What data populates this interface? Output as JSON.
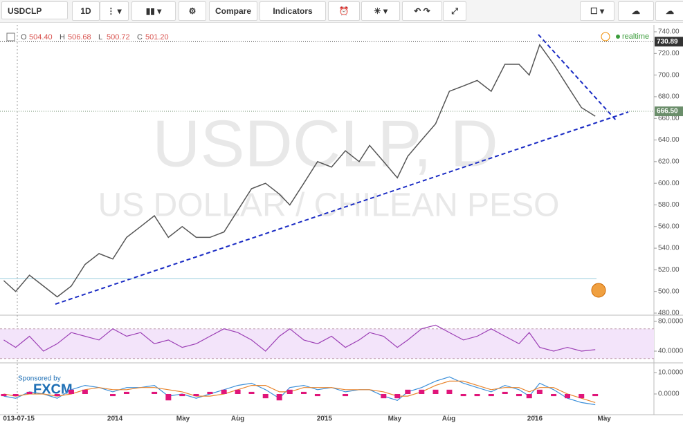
{
  "toolbar": {
    "symbol": "USDCLP",
    "interval": "1D",
    "compare": "Compare",
    "indicators": "Indicators"
  },
  "header": {
    "o_label": "O",
    "o": "504.40",
    "h_label": "H",
    "h": "506.68",
    "l_label": "L",
    "l": "500.72",
    "c_label": "C",
    "c": "501.20",
    "realtime": "realtime"
  },
  "watermark": {
    "symbol": "USDCLP, D",
    "name": "US DOLLAR / CHILEAN PESO"
  },
  "sponsor": {
    "text": "Sponsored by",
    "brand": "FXCM"
  },
  "chart_data": [
    {
      "type": "line",
      "name": "price",
      "color": "#555555",
      "x": [
        2013.468,
        2013.525,
        2013.591,
        2013.658,
        2013.724,
        2013.791,
        2013.857,
        2013.924,
        2013.99,
        2014.056,
        2014.123,
        2014.189,
        2014.256,
        2014.322,
        2014.389,
        2014.455,
        2014.522,
        2014.588,
        2014.654,
        2014.721,
        2014.787,
        2014.837,
        2014.904,
        2014.97,
        2015.037,
        2015.103,
        2015.169,
        2015.219,
        2015.286,
        2015.352,
        2015.402,
        2015.468,
        2015.535,
        2015.601,
        2015.668,
        2015.734,
        2015.801,
        2015.867,
        2015.934,
        2015.983,
        2016.033,
        2016.1,
        2016.166,
        2016.233,
        2016.299
      ],
      "values": [
        510,
        500,
        515,
        505,
        495,
        505,
        525,
        535,
        530,
        550,
        560,
        570,
        550,
        560,
        550,
        550,
        555,
        575,
        595,
        600,
        590,
        580,
        600,
        620,
        615,
        630,
        620,
        635,
        620,
        605,
        625,
        640,
        655,
        685,
        690,
        695,
        685,
        710,
        710,
        700,
        728,
        710,
        690,
        670,
        662
      ],
      "xlim": [
        2013.45,
        2016.58
      ],
      "xticks": [
        {
          "value": 2013.54,
          "label": "013-07-15"
        },
        {
          "value": 2014,
          "label": "2014"
        },
        {
          "value": 2014.326,
          "label": "May"
        },
        {
          "value": 2014.588,
          "label": "Aug"
        },
        {
          "value": 2015.003,
          "label": "2015"
        },
        {
          "value": 2015.339,
          "label": "May"
        },
        {
          "value": 2015.598,
          "label": "Aug"
        },
        {
          "value": 2016.01,
          "label": "2016"
        },
        {
          "value": 2016.342,
          "label": "May"
        }
      ],
      "ylim": [
        480,
        740
      ],
      "yticks": [
        {
          "value": 480,
          "label": "480.00"
        },
        {
          "value": 500,
          "label": "500.00"
        },
        {
          "value": 520,
          "label": "520.00"
        },
        {
          "value": 540,
          "label": "540.00"
        },
        {
          "value": 560,
          "label": "560.00"
        },
        {
          "value": 580,
          "label": "580.00"
        },
        {
          "value": 600,
          "label": "600.00"
        },
        {
          "value": 620,
          "label": "620.00"
        },
        {
          "value": 640,
          "label": "640.00"
        },
        {
          "value": 660,
          "label": "660.00"
        },
        {
          "value": 680,
          "label": "680.00"
        },
        {
          "value": 700,
          "label": "700.00"
        },
        {
          "value": 720,
          "label": "720.00"
        },
        {
          "value": 740,
          "label": "740.00"
        }
      ],
      "price_labels": [
        {
          "value": 730.89,
          "label": "730.89",
          "color": "#333333"
        },
        {
          "value": 666.5,
          "label": "666.50",
          "color": "#6b8e6b"
        }
      ]
    },
    {
      "type": "line",
      "name": "rsi",
      "color": "#9c3fb5",
      "values": [
        55,
        45,
        60,
        40,
        50,
        65,
        60,
        55,
        70,
        60,
        65,
        50,
        55,
        45,
        50,
        60,
        70,
        65,
        55,
        40,
        60,
        70,
        55,
        50,
        60,
        45,
        55,
        65,
        60,
        45,
        55,
        70,
        75,
        65,
        55,
        60,
        70,
        60,
        50,
        65,
        45,
        40,
        45,
        40,
        42
      ],
      "ylim": [
        27,
        86.5
      ],
      "band": [
        30,
        70
      ],
      "yticks": [
        {
          "value": 40,
          "label": "40.0000"
        },
        {
          "value": 80,
          "label": "80.0000"
        }
      ]
    },
    {
      "type": "macd",
      "name": "macd",
      "series": [
        {
          "name": "MACD",
          "color": "#3b8fd9",
          "values": [
            -1,
            -2,
            1,
            0,
            -2,
            2,
            4,
            3,
            1,
            3,
            3,
            4,
            -1,
            0,
            -2,
            0,
            2,
            4,
            5,
            2,
            -2,
            3,
            4,
            2,
            3,
            1,
            2,
            2,
            -1,
            -3,
            1,
            3,
            6,
            8,
            5,
            3,
            1,
            4,
            2,
            -1,
            5,
            2,
            -2,
            -4,
            -5
          ]
        },
        {
          "name": "Signal",
          "color": "#e8842c",
          "values": [
            0,
            -1,
            0,
            0,
            -1,
            0,
            2,
            3,
            2,
            2,
            3,
            3,
            2,
            1,
            -1,
            -1,
            0,
            2,
            4,
            4,
            1,
            1,
            3,
            3,
            3,
            2,
            2,
            2,
            1,
            -1,
            -1,
            1,
            4,
            6,
            6,
            4,
            2,
            3,
            3,
            1,
            3,
            3,
            0,
            -2,
            -4
          ]
        },
        {
          "name": "Histogram",
          "color": "#e0157a",
          "values": [
            -1,
            -1,
            1,
            0,
            -1,
            2,
            2,
            0,
            -1,
            1,
            0,
            1,
            -3,
            -1,
            -1,
            1,
            2,
            2,
            1,
            -2,
            -3,
            2,
            1,
            -1,
            0,
            -1,
            0,
            0,
            -2,
            -2,
            2,
            2,
            2,
            2,
            -1,
            -1,
            -1,
            1,
            -1,
            -2,
            2,
            -1,
            -2,
            -2,
            -1
          ]
        }
      ],
      "ylim": [
        -9.7,
        13.9
      ],
      "yticks": [
        {
          "value": 0,
          "label": "0.0000"
        },
        {
          "value": 10,
          "label": "10.0000"
        }
      ]
    }
  ]
}
